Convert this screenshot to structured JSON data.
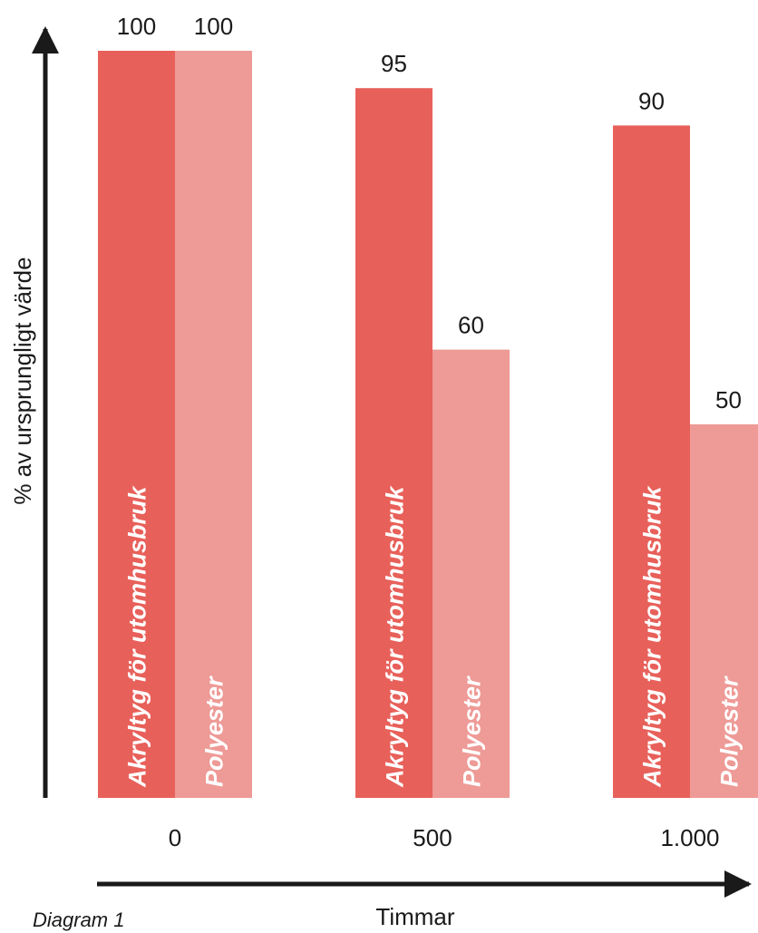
{
  "chart_data": {
    "type": "bar",
    "categories": [
      "0",
      "500",
      "1.000"
    ],
    "series": [
      {
        "name": "Akryltyg för utomhusbruk",
        "values": [
          100,
          95,
          90
        ],
        "color": "#e8605a"
      },
      {
        "name": "Polyester",
        "values": [
          100,
          60,
          50
        ],
        "color": "#ee9a96"
      }
    ],
    "value_labels": [
      [
        "100",
        "95",
        "90"
      ],
      [
        "100",
        "60",
        "50"
      ]
    ],
    "xlabel": "Timmar",
    "ylabel": "% av ursprungligt värde",
    "ylim": [
      0,
      100
    ],
    "grid": false,
    "legend": "none"
  },
  "caption": "Diagram 1",
  "colors": {
    "axis": "#1a1a1a"
  }
}
